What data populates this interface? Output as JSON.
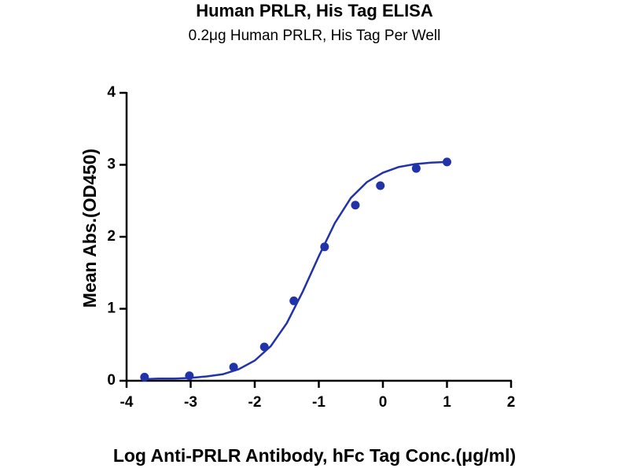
{
  "chart_data": {
    "type": "scatter",
    "title": "Human PRLR, His Tag ELISA",
    "subtitle": "0.2μg Human PRLR, His Tag Per Well",
    "x_label": "Log Anti-PRLR Antibody, hFc Tag Conc.(μg/ml)",
    "y_label": "Mean Abs.(OD450)",
    "xlim": [
      -4,
      2
    ],
    "ylim": [
      0,
      4
    ],
    "xticks": [
      -4,
      -3,
      -2,
      -1,
      0,
      1,
      2
    ],
    "yticks": [
      0,
      1,
      2,
      3,
      4
    ],
    "grid": false,
    "series": [
      {
        "type": "scatter",
        "color": "#2233aa",
        "x": [
          -3.72,
          -3.02,
          -2.33,
          -1.85,
          -1.39,
          -0.91,
          -0.43,
          -0.04,
          0.52,
          1.0
        ],
        "values": [
          0.05,
          0.07,
          0.19,
          0.47,
          1.11,
          1.86,
          2.44,
          2.71,
          2.95,
          3.04
        ]
      },
      {
        "type": "line",
        "color": "#2233aa",
        "x": [
          -3.75,
          -3.5,
          -3.25,
          -3.0,
          -2.75,
          -2.5,
          -2.25,
          -2.0,
          -1.75,
          -1.5,
          -1.25,
          -1.0,
          -0.75,
          -0.5,
          -0.25,
          0,
          0.25,
          0.5,
          0.75,
          1.0
        ],
        "values": [
          0.02,
          0.03,
          0.03,
          0.04,
          0.06,
          0.09,
          0.16,
          0.28,
          0.48,
          0.8,
          1.24,
          1.73,
          2.19,
          2.54,
          2.76,
          2.89,
          2.97,
          3.01,
          3.03,
          3.04
        ]
      }
    ]
  }
}
